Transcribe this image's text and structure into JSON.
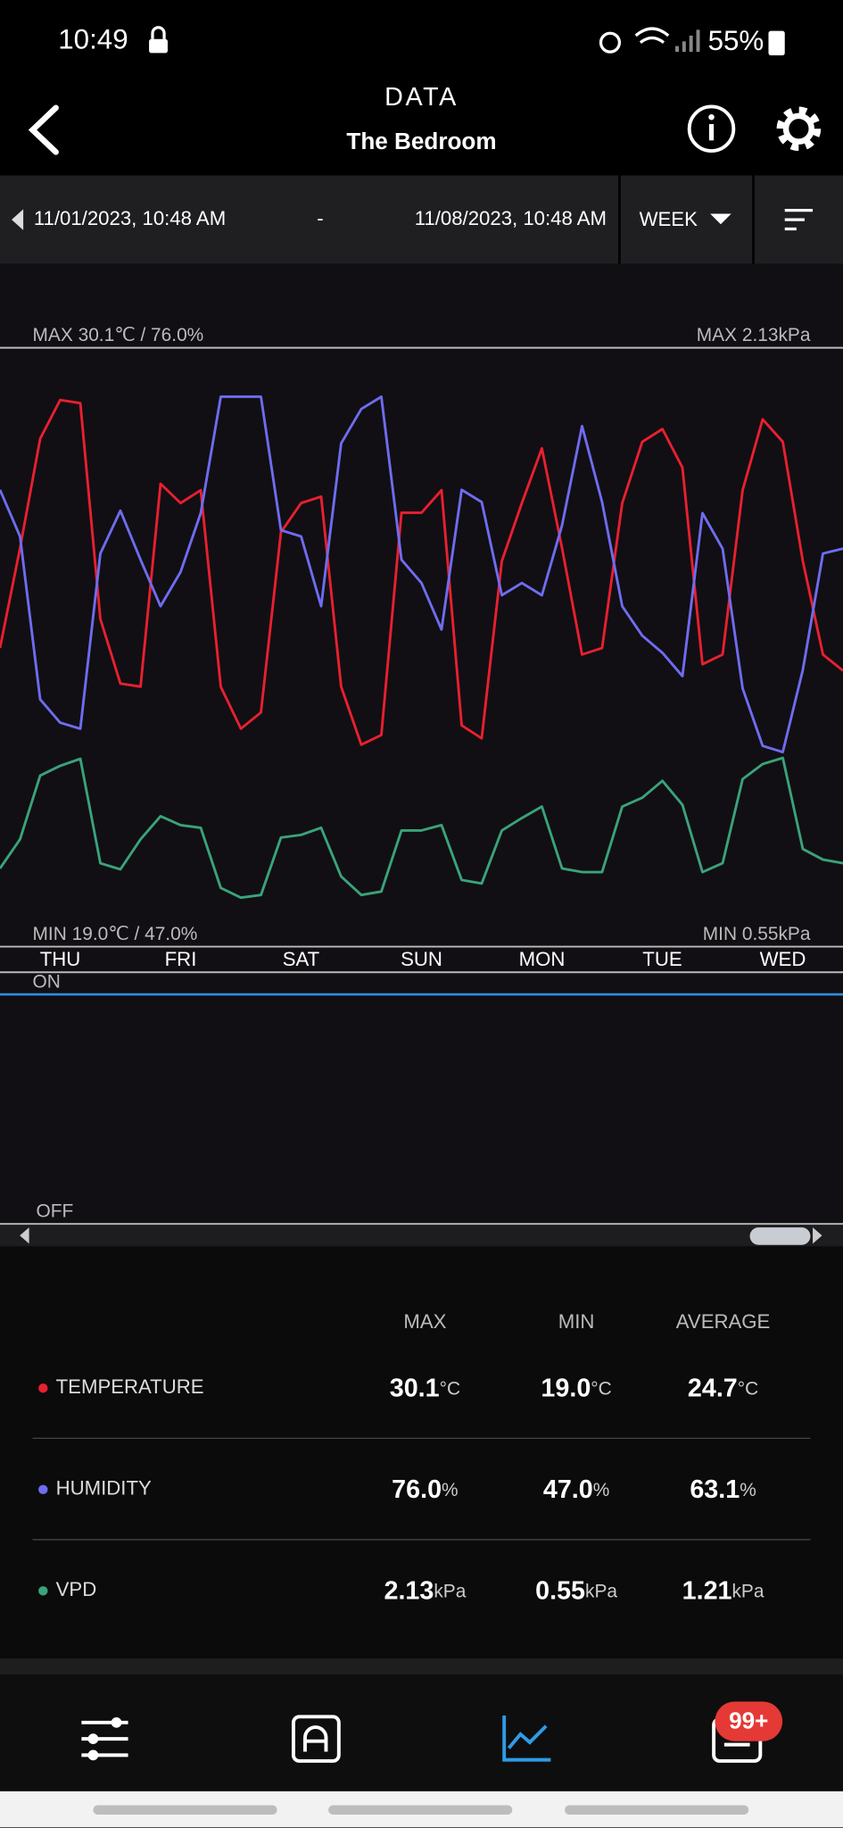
{
  "status_bar": {
    "time": "10:49",
    "battery": "55%"
  },
  "header": {
    "title": "DATA",
    "subtitle": "The Bedroom"
  },
  "range": {
    "start": "11/01/2023, 10:48 AM",
    "separator": "-",
    "end": "11/08/2023, 10:48 AM",
    "period": "WEEK"
  },
  "chart_data": {
    "type": "line",
    "max_label": "MAX 30.1℃ / 76.0%",
    "max_label_right": "MAX 2.13kPa",
    "min_label": "MIN 19.0℃ / 47.0%",
    "min_label_right": "MIN 0.55kPa",
    "categories": [
      "THU",
      "FRI",
      "SAT",
      "SUN",
      "MON",
      "TUE",
      "WED"
    ],
    "xlim": [
      0,
      168
    ],
    "x": [
      0,
      4,
      8,
      12,
      16,
      20,
      24,
      28,
      32,
      36,
      40,
      44,
      48,
      52,
      56,
      60,
      64,
      68,
      72,
      76,
      80,
      84,
      88,
      92,
      96,
      100,
      104,
      108,
      112,
      116,
      120,
      124,
      128,
      132,
      136,
      140,
      144,
      148,
      152,
      156,
      160,
      164,
      168
    ],
    "series": [
      {
        "name": "TEMPERATURE",
        "color": "#e8202f",
        "ylim": [
          19,
          30.1
        ],
        "values": [
          22.3,
          25.4,
          28.8,
          30.0,
          29.9,
          23.2,
          21.2,
          21.1,
          27.4,
          26.8,
          27.2,
          21.1,
          19.8,
          20.3,
          25.9,
          26.8,
          27.0,
          21.1,
          19.3,
          19.6,
          26.5,
          26.5,
          27.2,
          19.9,
          19.5,
          25.0,
          26.8,
          28.5,
          25.4,
          22.1,
          22.3,
          26.8,
          28.7,
          29.1,
          27.9,
          21.8,
          22.1,
          27.2,
          29.4,
          28.7,
          25.0,
          22.1,
          21.6
        ]
      },
      {
        "name": "HUMIDITY",
        "color": "#6f6cf0",
        "ylim": [
          47,
          76
        ],
        "values": [
          68.4,
          64.6,
          51.3,
          49.4,
          48.9,
          63.2,
          66.7,
          62.7,
          58.9,
          61.7,
          66.5,
          76.0,
          76.0,
          76.0,
          65.1,
          64.6,
          58.9,
          72.2,
          75.0,
          76.0,
          62.7,
          60.8,
          57.0,
          68.4,
          67.4,
          59.8,
          60.8,
          59.8,
          65.5,
          73.6,
          67.4,
          58.9,
          56.5,
          55.1,
          53.2,
          66.5,
          63.6,
          52.2,
          47.5,
          47.0,
          53.7,
          63.2,
          63.6
        ]
      },
      {
        "name": "VPD",
        "color": "#3aa37a",
        "ylim": [
          0.55,
          2.13
        ],
        "values": [
          0.88,
          1.21,
          1.93,
          2.04,
          2.12,
          0.94,
          0.87,
          1.21,
          1.47,
          1.37,
          1.34,
          0.66,
          0.55,
          0.58,
          1.23,
          1.26,
          1.34,
          0.79,
          0.58,
          0.62,
          1.31,
          1.31,
          1.37,
          0.75,
          0.71,
          1.31,
          1.45,
          1.58,
          0.88,
          0.84,
          0.84,
          1.58,
          1.68,
          1.87,
          1.6,
          0.84,
          0.94,
          1.89,
          2.06,
          2.13,
          1.1,
          0.98,
          0.94
        ]
      }
    ]
  },
  "switch": {
    "on": "ON",
    "off": "OFF"
  },
  "stats": {
    "headers": [
      "MAX",
      "MIN",
      "AVERAGE"
    ],
    "rows": [
      {
        "values": [
          "30.1",
          "19.0",
          "24.7"
        ],
        "unit": "°C"
      },
      {
        "values": [
          "76.0",
          "47.0",
          "63.1"
        ],
        "unit": "%"
      },
      {
        "values": [
          "2.13",
          "0.55",
          "1.21"
        ],
        "unit": "kPa"
      }
    ]
  },
  "nav": {
    "badge": "99+"
  }
}
